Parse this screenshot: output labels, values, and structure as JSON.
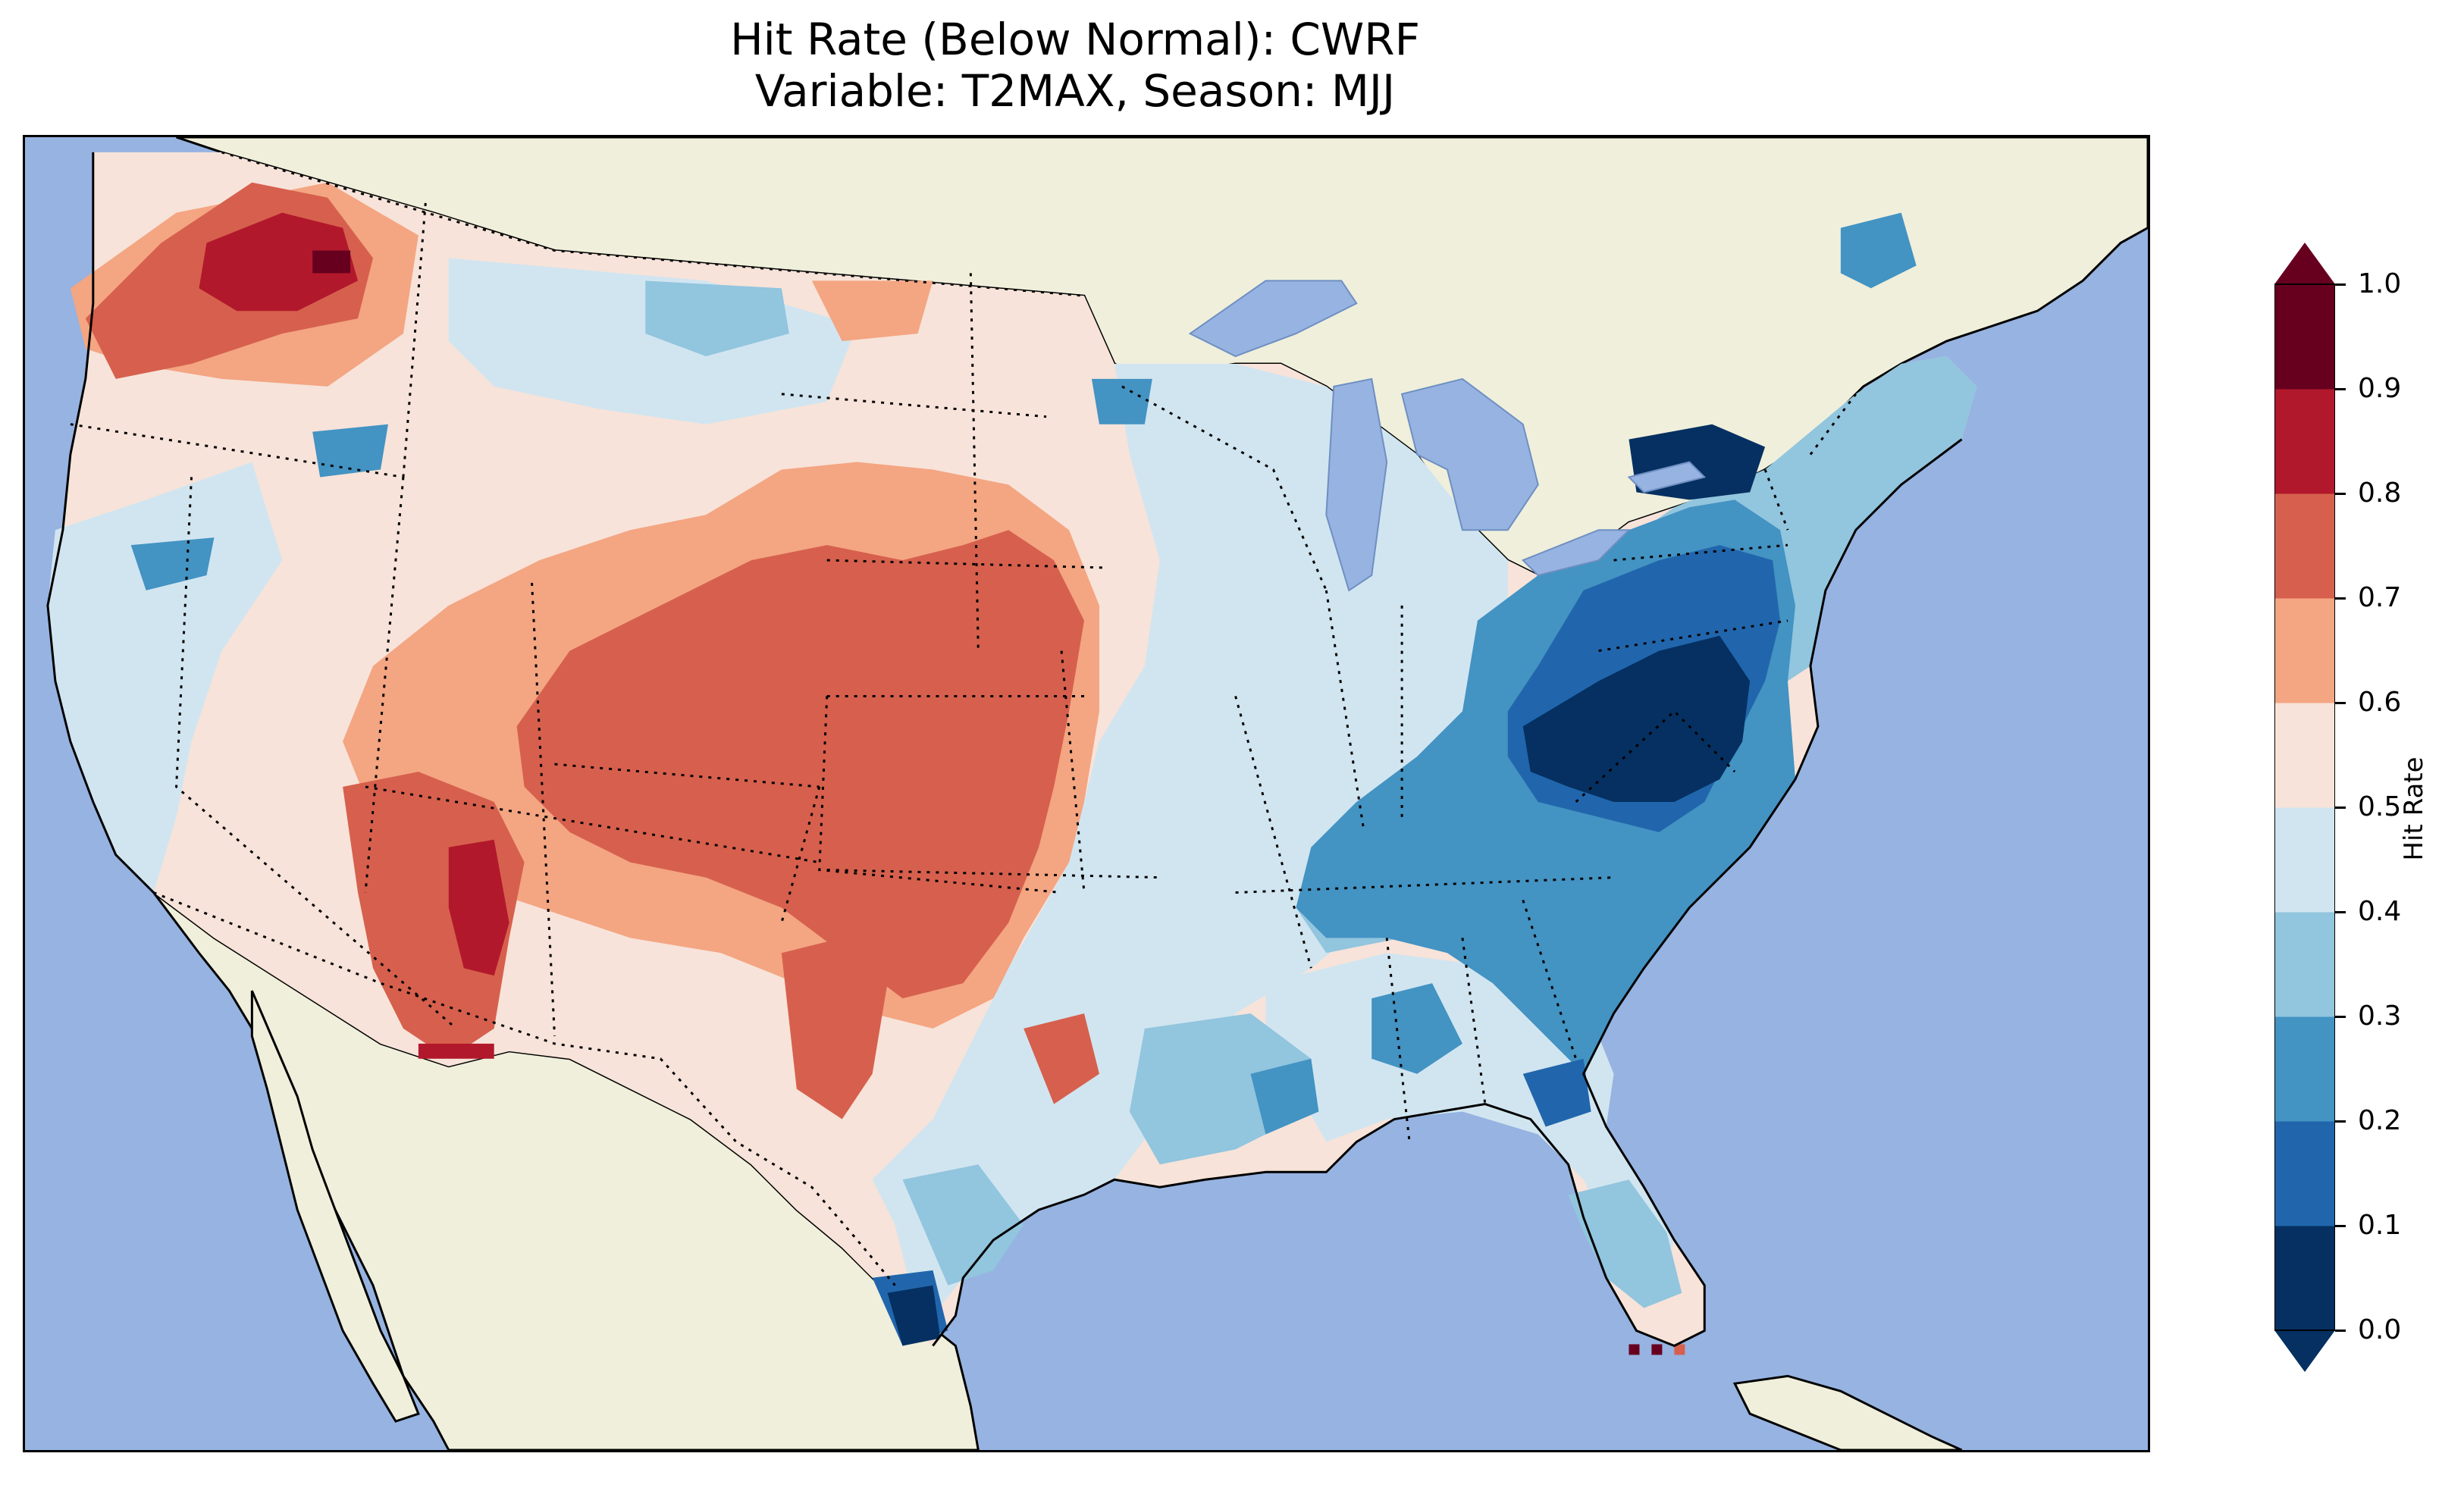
{
  "title": {
    "line1": "Hit Rate (Below Normal): CWRF",
    "line2": "Variable: T2MAX, Season: MJJ"
  },
  "colorbar": {
    "label": "Hit Rate",
    "ticks": [
      "0.0",
      "0.1",
      "0.2",
      "0.3",
      "0.4",
      "0.5",
      "0.6",
      "0.7",
      "0.8",
      "0.9",
      "1.0"
    ],
    "bins": [
      {
        "range": "0.0-0.1",
        "color": "#053061"
      },
      {
        "range": "0.1-0.2",
        "color": "#2166ac"
      },
      {
        "range": "0.2-0.3",
        "color": "#4393c3"
      },
      {
        "range": "0.3-0.4",
        "color": "#92c5de"
      },
      {
        "range": "0.4-0.5",
        "color": "#d1e5f0"
      },
      {
        "range": "0.5-0.6",
        "color": "#f7e3d9"
      },
      {
        "range": "0.6-0.7",
        "color": "#f4a582"
      },
      {
        "range": "0.7-0.8",
        "color": "#d6604d"
      },
      {
        "range": "0.8-0.9",
        "color": "#b2182b"
      },
      {
        "range": "0.9-1.0",
        "color": "#67001f"
      }
    ],
    "under_color": "#053061",
    "over_color": "#67001f"
  },
  "map_colors": {
    "ocean": "#96b3e1",
    "land": "#efefdb"
  }
}
